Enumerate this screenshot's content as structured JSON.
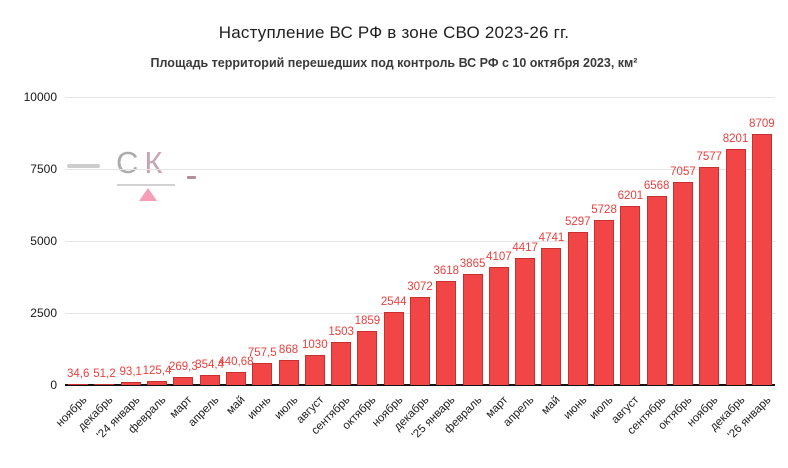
{
  "chart_data": {
    "type": "bar",
    "title": "Наступление ВС РФ в зоне СВО 2023-26 гг.",
    "subtitle": "Площадь территорий перешедших под контроль ВС РФ с 10 октября 2023, км²",
    "categories": [
      "ноябрь",
      "декабрь",
      "'24 январь",
      "февраль",
      "март",
      "апрель",
      "май",
      "июнь",
      "июль",
      "август",
      "сентябрь",
      "октябрь",
      "ноябрь",
      "декабрь",
      "'25 январь",
      "февраль",
      "март",
      "апрель",
      "май",
      "июнь",
      "июль",
      "август",
      "сентябрь",
      "октябрь",
      "ноябрь",
      "декабрь",
      "'26 январь"
    ],
    "values": [
      34.6,
      51.2,
      93.1,
      125.4,
      269.3,
      354.4,
      440.68,
      757.5,
      868,
      1030,
      1503,
      1859,
      2544,
      3072,
      3618,
      3865,
      4107,
      4417,
      4741,
      5297,
      5728,
      6201,
      6568,
      7057,
      7577,
      8201,
      8709
    ],
    "value_labels": [
      "34,6",
      "51,2",
      "93,1",
      "125,4",
      "269,3",
      "354,4",
      "440,68",
      "757,5",
      "868",
      "1030",
      "1503",
      "1859",
      "2544",
      "3072",
      "3618",
      "3865",
      "4107",
      "4417",
      "4741",
      "5297",
      "5728",
      "6201",
      "6568",
      "7057",
      "7577",
      "8201",
      "8709"
    ],
    "ylim": [
      0,
      10000
    ],
    "yticks": [
      0,
      2500,
      5000,
      7500,
      10000
    ],
    "ytick_labels": [
      "0",
      "2500",
      "5000",
      "7500",
      "10000"
    ],
    "grid": true,
    "legend": "none",
    "colors": {
      "bar_fill": "#f24545",
      "bar_border": "#c92f2f",
      "value_label": "#e8403f",
      "grid_line": "#e4e4e4",
      "axis_line": "#111111"
    }
  },
  "watermark": {
    "letter_1": "С",
    "letter_2": "К",
    "letter_1_color": "#acacac",
    "letter_2_color": "#c9a3b1",
    "underline_color": "#d2d2d2",
    "dash_left_color": "#cdcdcd",
    "dash_right_color": "#b58f98",
    "triangle_color": "#f49fb6"
  }
}
